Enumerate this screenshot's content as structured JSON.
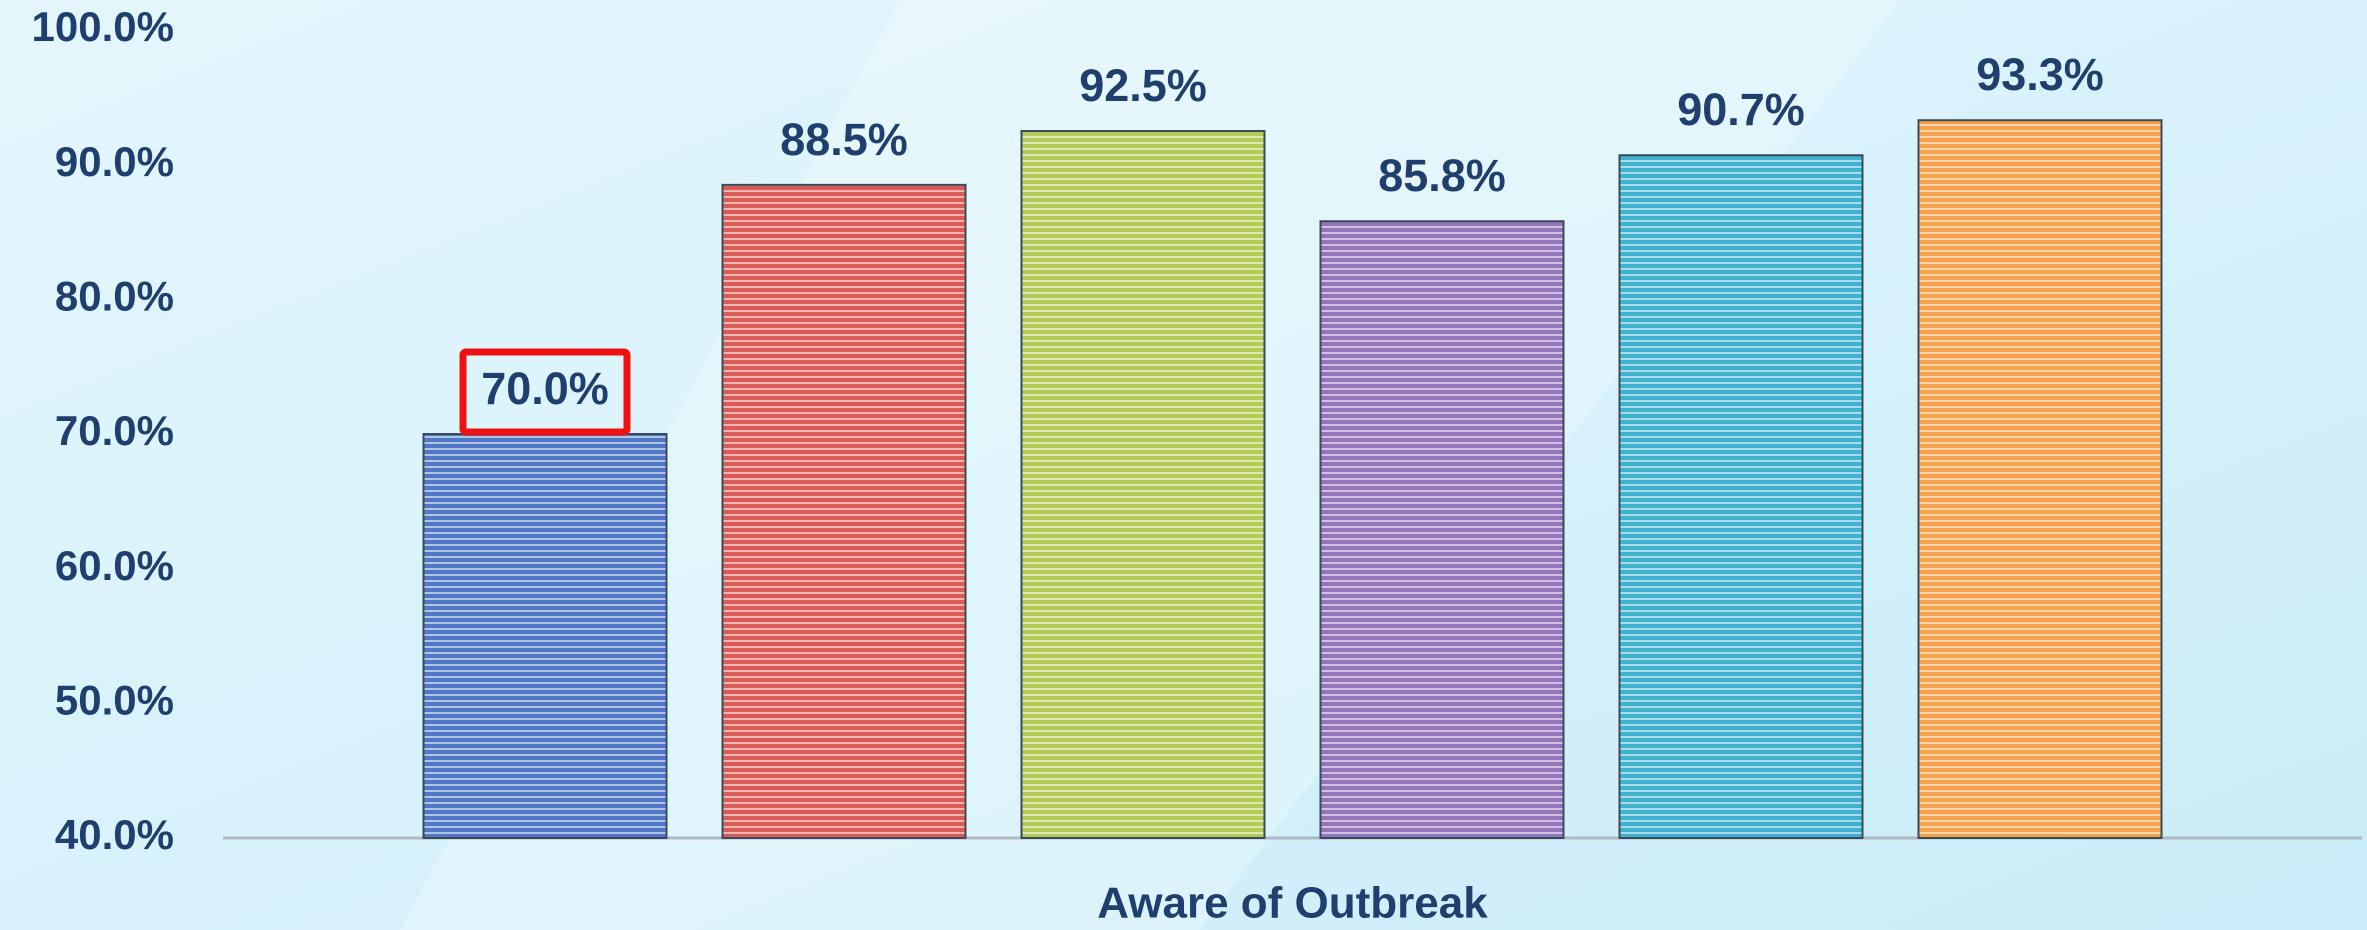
{
  "chart_data": {
    "type": "bar",
    "categories": [
      "Aware of Outbreak"
    ],
    "series": [
      {
        "color": "#4f79c6",
        "values": [
          70.0
        ],
        "value_labels": [
          "70.0%"
        ],
        "highlighted": true
      },
      {
        "color": "#da5a55",
        "values": [
          88.5
        ],
        "value_labels": [
          "88.5%"
        ]
      },
      {
        "color": "#b4cb58",
        "values": [
          92.5
        ],
        "value_labels": [
          "92.5%"
        ]
      },
      {
        "color": "#9474ba",
        "values": [
          85.8
        ],
        "value_labels": [
          "85.8%"
        ]
      },
      {
        "color": "#3fb2cf",
        "values": [
          90.7
        ],
        "value_labels": [
          "90.7%"
        ]
      },
      {
        "color": "#f6a14c",
        "values": [
          93.3
        ],
        "value_labels": [
          "93.3%"
        ]
      }
    ],
    "ylim": [
      40,
      100
    ],
    "yticks": [
      {
        "value": 40,
        "label": "40.0%"
      },
      {
        "value": 50,
        "label": "50.0%"
      },
      {
        "value": 60,
        "label": "60.0%"
      },
      {
        "value": 70,
        "label": "70.0%"
      },
      {
        "value": 80,
        "label": "80.0%"
      },
      {
        "value": 90,
        "label": "90.0%"
      },
      {
        "value": 100,
        "label": "100.0%"
      }
    ],
    "grid": false
  }
}
